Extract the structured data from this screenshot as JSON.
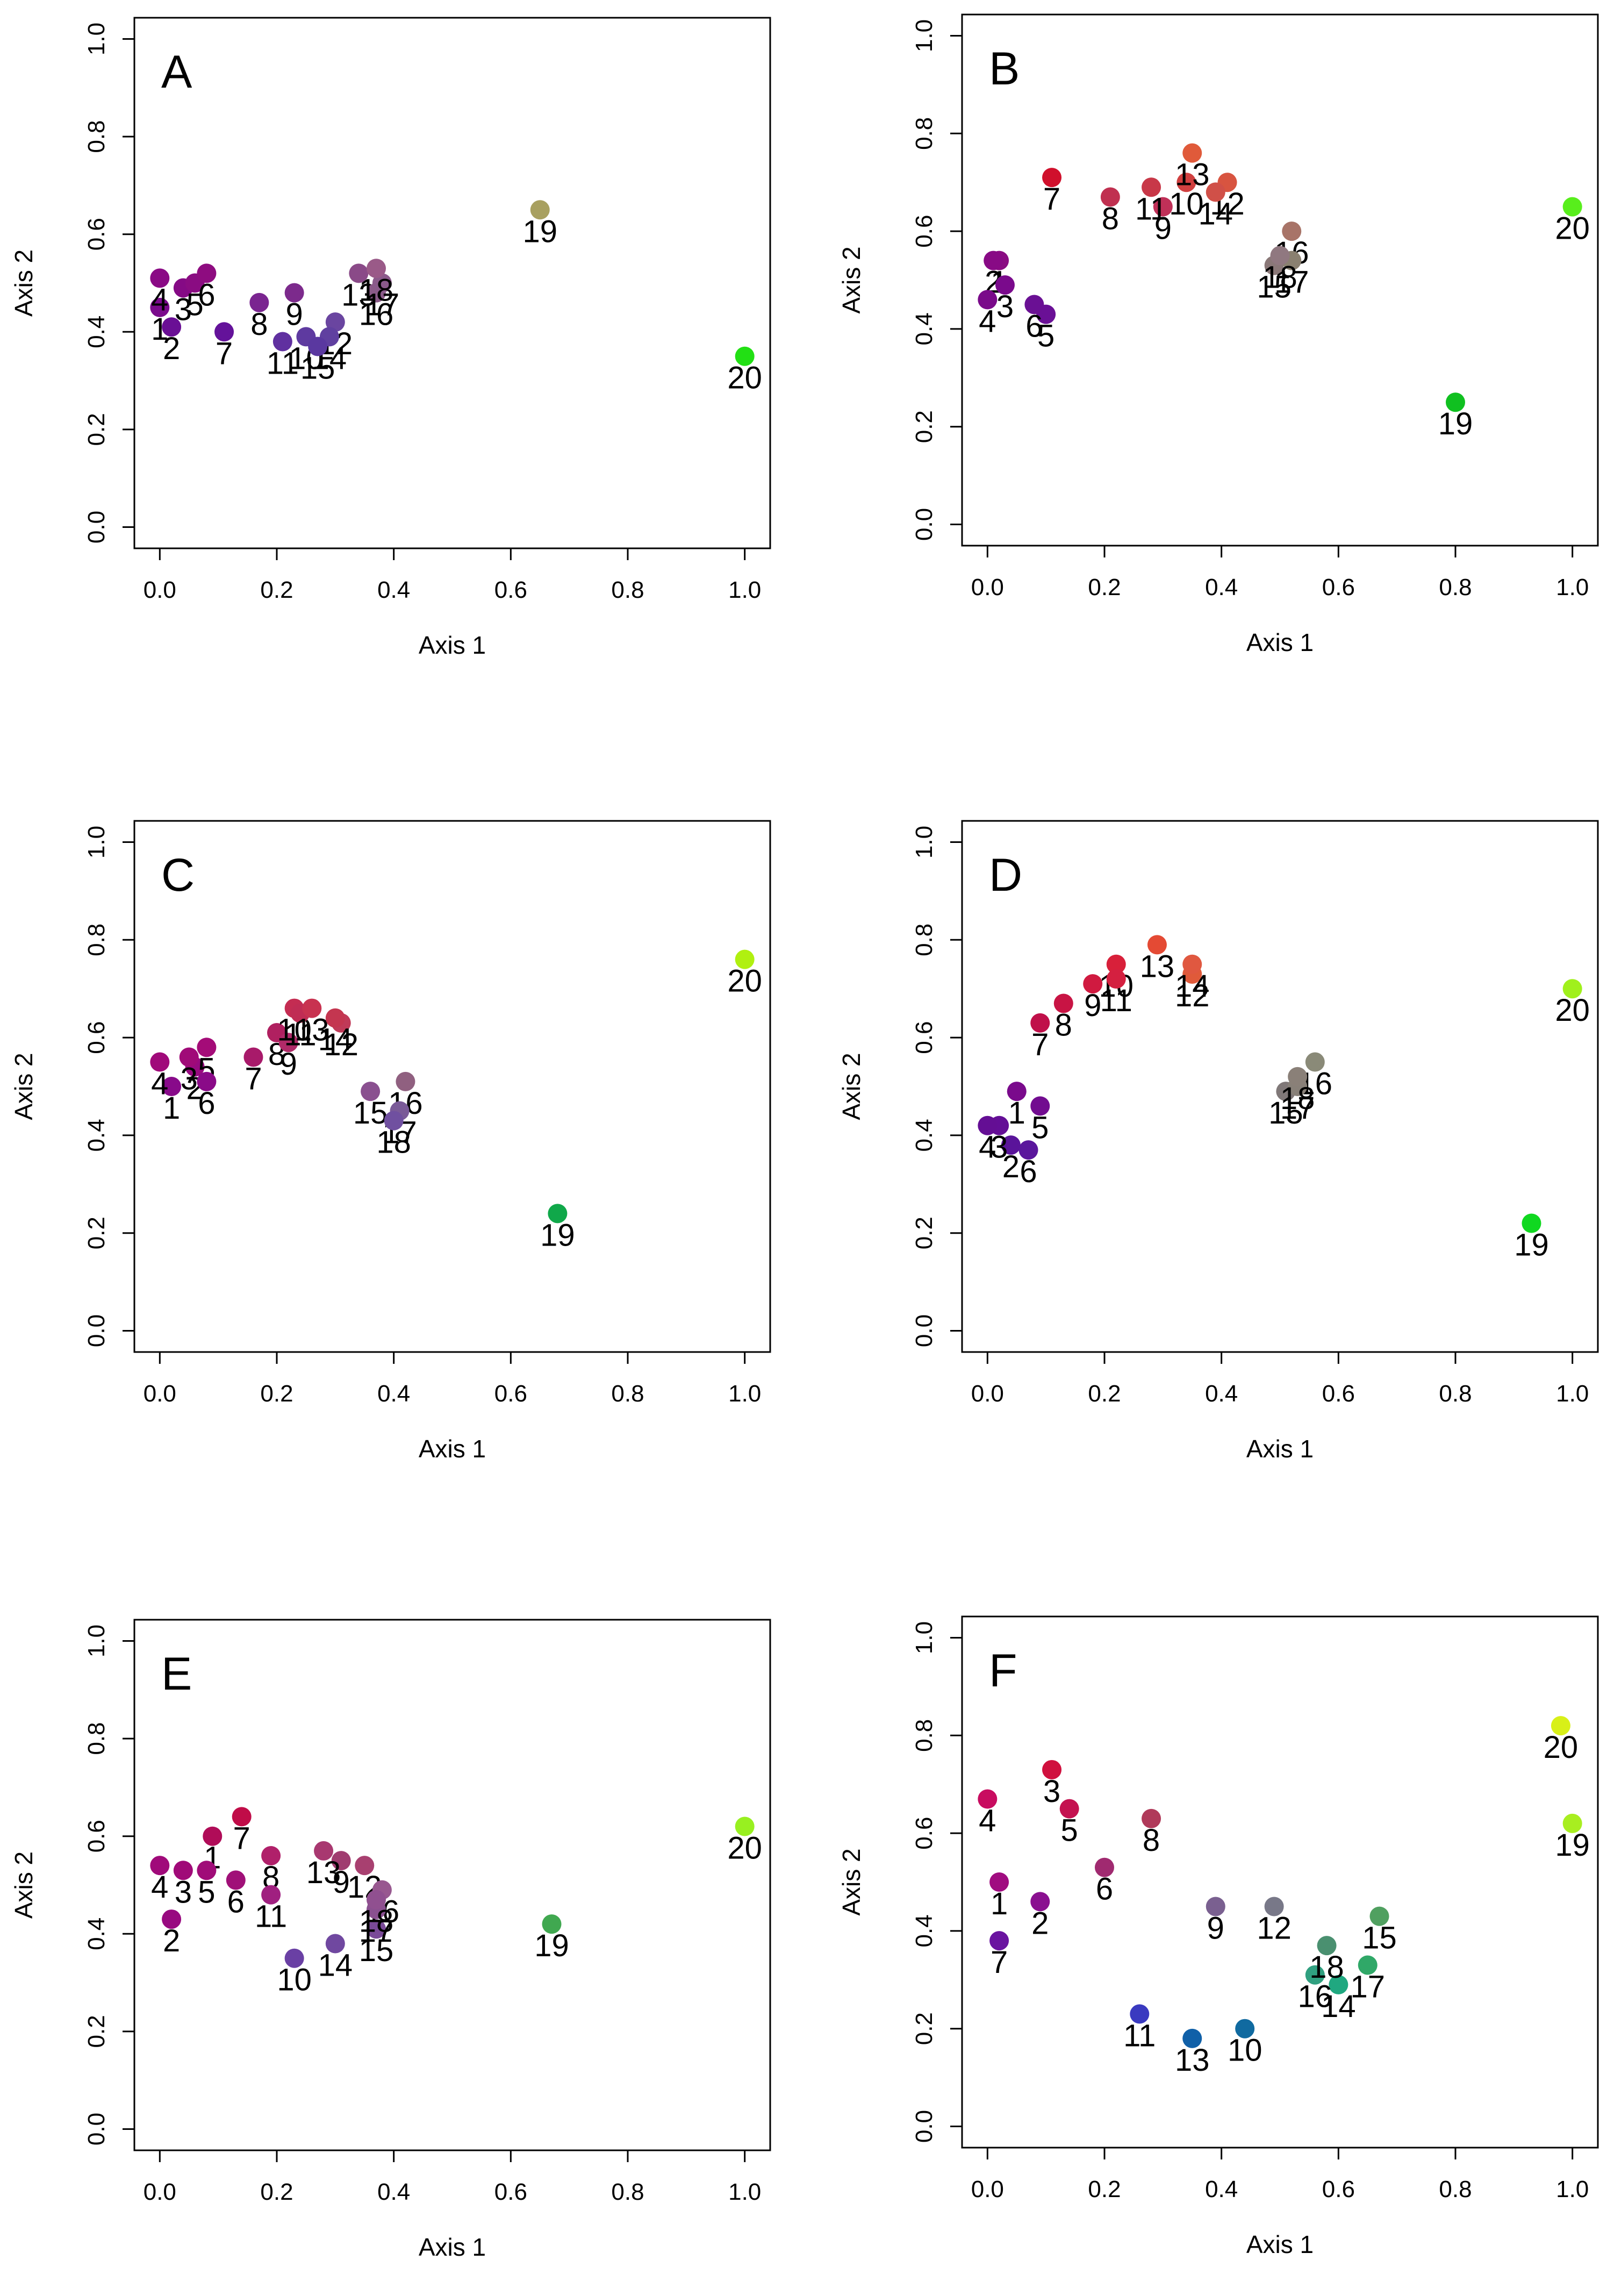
{
  "chart_data": [
    {
      "panel": "A",
      "type": "scatter",
      "xlabel": "Axis 1",
      "ylabel": "Axis 2",
      "xlim": [
        0,
        1
      ],
      "ylim": [
        0,
        1
      ],
      "xticks": [
        "0.0",
        "0.2",
        "0.4",
        "0.6",
        "0.8",
        "1.0"
      ],
      "yticks": [
        "0.0",
        "0.2",
        "0.4",
        "0.6",
        "0.8",
        "1.0"
      ],
      "points": [
        {
          "label": "1",
          "x": 0.0,
          "y": 0.45,
          "color": "#7a0a8c"
        },
        {
          "label": "2",
          "x": 0.02,
          "y": 0.41,
          "color": "#6a0f95"
        },
        {
          "label": "3",
          "x": 0.04,
          "y": 0.49,
          "color": "#850a85"
        },
        {
          "label": "4",
          "x": 0.0,
          "y": 0.51,
          "color": "#8a0a85"
        },
        {
          "label": "5",
          "x": 0.06,
          "y": 0.5,
          "color": "#8a0c82"
        },
        {
          "label": "6",
          "x": 0.08,
          "y": 0.52,
          "color": "#8e0c80"
        },
        {
          "label": "7",
          "x": 0.11,
          "y": 0.4,
          "color": "#64129a"
        },
        {
          "label": "8",
          "x": 0.17,
          "y": 0.46,
          "color": "#7a2590"
        },
        {
          "label": "9",
          "x": 0.23,
          "y": 0.48,
          "color": "#7c2a8c"
        },
        {
          "label": "10",
          "x": 0.25,
          "y": 0.39,
          "color": "#5e3aa0"
        },
        {
          "label": "11",
          "x": 0.21,
          "y": 0.38,
          "color": "#6030a0"
        },
        {
          "label": "12",
          "x": 0.3,
          "y": 0.42,
          "color": "#6a45a0"
        },
        {
          "label": "13",
          "x": 0.34,
          "y": 0.52,
          "color": "#8a4a88"
        },
        {
          "label": "14",
          "x": 0.29,
          "y": 0.39,
          "color": "#6040a0"
        },
        {
          "label": "15",
          "x": 0.27,
          "y": 0.37,
          "color": "#5a38a0"
        },
        {
          "label": "16",
          "x": 0.37,
          "y": 0.48,
          "color": "#8a5a88"
        },
        {
          "label": "17",
          "x": 0.38,
          "y": 0.5,
          "color": "#8a5a8a"
        },
        {
          "label": "18",
          "x": 0.37,
          "y": 0.53,
          "color": "#9a5a88"
        },
        {
          "label": "19",
          "x": 0.65,
          "y": 0.65,
          "color": "#a8a060"
        },
        {
          "label": "20",
          "x": 1.0,
          "y": 0.35,
          "color": "#22e014"
        }
      ]
    },
    {
      "panel": "B",
      "type": "scatter",
      "xlabel": "Axis 1",
      "ylabel": "Axis 2",
      "xlim": [
        0,
        1
      ],
      "ylim": [
        0,
        1
      ],
      "xticks": [
        "0.0",
        "0.2",
        "0.4",
        "0.6",
        "0.8",
        "1.0"
      ],
      "yticks": [
        "0.0",
        "0.2",
        "0.4",
        "0.6",
        "0.8",
        "1.0"
      ],
      "points": [
        {
          "label": "1",
          "x": 0.02,
          "y": 0.54,
          "color": "#8a0c82"
        },
        {
          "label": "2",
          "x": 0.01,
          "y": 0.54,
          "color": "#880a85"
        },
        {
          "label": "3",
          "x": 0.03,
          "y": 0.49,
          "color": "#7a0a8c"
        },
        {
          "label": "4",
          "x": 0.0,
          "y": 0.46,
          "color": "#7a0a8a"
        },
        {
          "label": "5",
          "x": 0.1,
          "y": 0.43,
          "color": "#6a1096"
        },
        {
          "label": "6",
          "x": 0.08,
          "y": 0.45,
          "color": "#6a1094"
        },
        {
          "label": "7",
          "x": 0.11,
          "y": 0.71,
          "color": "#d0102c"
        },
        {
          "label": "8",
          "x": 0.21,
          "y": 0.67,
          "color": "#c03050"
        },
        {
          "label": "9",
          "x": 0.3,
          "y": 0.65,
          "color": "#c03058"
        },
        {
          "label": "10",
          "x": 0.34,
          "y": 0.7,
          "color": "#d04040"
        },
        {
          "label": "11",
          "x": 0.28,
          "y": 0.69,
          "color": "#c83848"
        },
        {
          "label": "12",
          "x": 0.41,
          "y": 0.7,
          "color": "#d85440"
        },
        {
          "label": "13",
          "x": 0.35,
          "y": 0.76,
          "color": "#e05a3a"
        },
        {
          "label": "14",
          "x": 0.39,
          "y": 0.68,
          "color": "#d05048"
        },
        {
          "label": "15",
          "x": 0.49,
          "y": 0.53,
          "color": "#8a7878"
        },
        {
          "label": "16",
          "x": 0.52,
          "y": 0.6,
          "color": "#a87468"
        },
        {
          "label": "17",
          "x": 0.52,
          "y": 0.54,
          "color": "#8a8070"
        },
        {
          "label": "18",
          "x": 0.5,
          "y": 0.55,
          "color": "#907880"
        },
        {
          "label": "19",
          "x": 0.8,
          "y": 0.25,
          "color": "#10c020"
        },
        {
          "label": "20",
          "x": 1.0,
          "y": 0.65,
          "color": "#58ee1c"
        }
      ]
    },
    {
      "panel": "C",
      "type": "scatter",
      "xlabel": "Axis 1",
      "ylabel": "Axis 2",
      "xlim": [
        0,
        1
      ],
      "ylim": [
        0,
        1
      ],
      "xticks": [
        "0.0",
        "0.2",
        "0.4",
        "0.6",
        "0.8",
        "1.0"
      ],
      "yticks": [
        "0.0",
        "0.2",
        "0.4",
        "0.6",
        "0.8",
        "1.0"
      ],
      "points": [
        {
          "label": "1",
          "x": 0.02,
          "y": 0.5,
          "color": "#880a8a"
        },
        {
          "label": "2",
          "x": 0.06,
          "y": 0.54,
          "color": "#980a80"
        },
        {
          "label": "3",
          "x": 0.05,
          "y": 0.56,
          "color": "#a00a78"
        },
        {
          "label": "4",
          "x": 0.0,
          "y": 0.55,
          "color": "#a00a7a"
        },
        {
          "label": "5",
          "x": 0.08,
          "y": 0.58,
          "color": "#a40c78"
        },
        {
          "label": "6",
          "x": 0.08,
          "y": 0.51,
          "color": "#8a0a88"
        },
        {
          "label": "7",
          "x": 0.16,
          "y": 0.56,
          "color": "#a81a6a"
        },
        {
          "label": "8",
          "x": 0.2,
          "y": 0.61,
          "color": "#b02060"
        },
        {
          "label": "9",
          "x": 0.22,
          "y": 0.59,
          "color": "#b02a68"
        },
        {
          "label": "10",
          "x": 0.23,
          "y": 0.66,
          "color": "#c42c52"
        },
        {
          "label": "11",
          "x": 0.24,
          "y": 0.65,
          "color": "#c02c54"
        },
        {
          "label": "12",
          "x": 0.31,
          "y": 0.63,
          "color": "#c03a58"
        },
        {
          "label": "13",
          "x": 0.26,
          "y": 0.66,
          "color": "#c83250"
        },
        {
          "label": "14",
          "x": 0.3,
          "y": 0.64,
          "color": "#c43650"
        },
        {
          "label": "15",
          "x": 0.36,
          "y": 0.49,
          "color": "#8a5090"
        },
        {
          "label": "16",
          "x": 0.42,
          "y": 0.51,
          "color": "#906080"
        },
        {
          "label": "17",
          "x": 0.41,
          "y": 0.45,
          "color": "#7a5a98"
        },
        {
          "label": "18",
          "x": 0.4,
          "y": 0.43,
          "color": "#7050a0"
        },
        {
          "label": "19",
          "x": 0.68,
          "y": 0.24,
          "color": "#10a84a"
        },
        {
          "label": "20",
          "x": 1.0,
          "y": 0.76,
          "color": "#b0f010"
        }
      ]
    },
    {
      "panel": "D",
      "type": "scatter",
      "xlabel": "Axis 1",
      "ylabel": "Axis 2",
      "xlim": [
        0,
        1
      ],
      "ylim": [
        0,
        1
      ],
      "xticks": [
        "0.0",
        "0.2",
        "0.4",
        "0.6",
        "0.8",
        "1.0"
      ],
      "yticks": [
        "0.0",
        "0.2",
        "0.4",
        "0.6",
        "0.8",
        "1.0"
      ],
      "points": [
        {
          "label": "1",
          "x": 0.05,
          "y": 0.49,
          "color": "#7a0a8c"
        },
        {
          "label": "2",
          "x": 0.04,
          "y": 0.38,
          "color": "#5a149a"
        },
        {
          "label": "3",
          "x": 0.02,
          "y": 0.42,
          "color": "#640e96"
        },
        {
          "label": "4",
          "x": 0.0,
          "y": 0.42,
          "color": "#640e94"
        },
        {
          "label": "5",
          "x": 0.09,
          "y": 0.46,
          "color": "#720c90"
        },
        {
          "label": "6",
          "x": 0.07,
          "y": 0.37,
          "color": "#5a169c"
        },
        {
          "label": "7",
          "x": 0.09,
          "y": 0.63,
          "color": "#c0104a"
        },
        {
          "label": "8",
          "x": 0.13,
          "y": 0.67,
          "color": "#c81444"
        },
        {
          "label": "9",
          "x": 0.18,
          "y": 0.71,
          "color": "#d01a40"
        },
        {
          "label": "10",
          "x": 0.22,
          "y": 0.75,
          "color": "#d8203a"
        },
        {
          "label": "11",
          "x": 0.22,
          "y": 0.72,
          "color": "#d42040"
        },
        {
          "label": "12",
          "x": 0.35,
          "y": 0.73,
          "color": "#e05a3a"
        },
        {
          "label": "13",
          "x": 0.29,
          "y": 0.79,
          "color": "#e44a34"
        },
        {
          "label": "14",
          "x": 0.35,
          "y": 0.75,
          "color": "#e05840"
        },
        {
          "label": "15",
          "x": 0.51,
          "y": 0.49,
          "color": "#807878"
        },
        {
          "label": "16",
          "x": 0.56,
          "y": 0.55,
          "color": "#8a8a78"
        },
        {
          "label": "17",
          "x": 0.53,
          "y": 0.5,
          "color": "#888078"
        },
        {
          "label": "18",
          "x": 0.53,
          "y": 0.52,
          "color": "#8a8078"
        },
        {
          "label": "19",
          "x": 0.93,
          "y": 0.22,
          "color": "#10d820"
        },
        {
          "label": "20",
          "x": 1.0,
          "y": 0.7,
          "color": "#a0f01c"
        }
      ]
    },
    {
      "panel": "E",
      "type": "scatter",
      "xlabel": "Axis 1",
      "ylabel": "Axis 2",
      "xlim": [
        0,
        1
      ],
      "ylim": [
        0,
        1
      ],
      "xticks": [
        "0.0",
        "0.2",
        "0.4",
        "0.6",
        "0.8",
        "1.0"
      ],
      "yticks": [
        "0.0",
        "0.2",
        "0.4",
        "0.6",
        "0.8",
        "1.0"
      ],
      "points": [
        {
          "label": "1",
          "x": 0.09,
          "y": 0.6,
          "color": "#b00c58"
        },
        {
          "label": "2",
          "x": 0.02,
          "y": 0.43,
          "color": "#980a80"
        },
        {
          "label": "3",
          "x": 0.04,
          "y": 0.53,
          "color": "#a00a78"
        },
        {
          "label": "4",
          "x": 0.0,
          "y": 0.54,
          "color": "#a00a7a"
        },
        {
          "label": "5",
          "x": 0.08,
          "y": 0.53,
          "color": "#a00c78"
        },
        {
          "label": "6",
          "x": 0.13,
          "y": 0.51,
          "color": "#a01078"
        },
        {
          "label": "7",
          "x": 0.14,
          "y": 0.64,
          "color": "#c00c48"
        },
        {
          "label": "8",
          "x": 0.19,
          "y": 0.56,
          "color": "#b0206a"
        },
        {
          "label": "9",
          "x": 0.31,
          "y": 0.55,
          "color": "#a03c70"
        },
        {
          "label": "10",
          "x": 0.23,
          "y": 0.35,
          "color": "#6a40a4"
        },
        {
          "label": "11",
          "x": 0.19,
          "y": 0.48,
          "color": "#a02080"
        },
        {
          "label": "12",
          "x": 0.35,
          "y": 0.54,
          "color": "#a84070"
        },
        {
          "label": "13",
          "x": 0.28,
          "y": 0.57,
          "color": "#a83870"
        },
        {
          "label": "14",
          "x": 0.3,
          "y": 0.38,
          "color": "#7048a0"
        },
        {
          "label": "15",
          "x": 0.37,
          "y": 0.41,
          "color": "#7a4a98"
        },
        {
          "label": "16",
          "x": 0.38,
          "y": 0.49,
          "color": "#985890"
        },
        {
          "label": "17",
          "x": 0.37,
          "y": 0.45,
          "color": "#8a5090"
        },
        {
          "label": "18",
          "x": 0.37,
          "y": 0.47,
          "color": "#905090"
        },
        {
          "label": "19",
          "x": 0.67,
          "y": 0.42,
          "color": "#40a850"
        },
        {
          "label": "20",
          "x": 1.0,
          "y": 0.62,
          "color": "#98f020"
        }
      ]
    },
    {
      "panel": "F",
      "type": "scatter",
      "xlabel": "Axis 1",
      "ylabel": "Axis 2",
      "xlim": [
        0,
        1
      ],
      "ylim": [
        0,
        1
      ],
      "xticks": [
        "0.0",
        "0.2",
        "0.4",
        "0.6",
        "0.8",
        "1.0"
      ],
      "yticks": [
        "0.0",
        "0.2",
        "0.4",
        "0.6",
        "0.8",
        "1.0"
      ],
      "points": [
        {
          "label": "1",
          "x": 0.02,
          "y": 0.5,
          "color": "#a00c80"
        },
        {
          "label": "2",
          "x": 0.09,
          "y": 0.46,
          "color": "#8a1090"
        },
        {
          "label": "3",
          "x": 0.11,
          "y": 0.73,
          "color": "#d0103e"
        },
        {
          "label": "4",
          "x": 0.0,
          "y": 0.67,
          "color": "#c80c60"
        },
        {
          "label": "5",
          "x": 0.14,
          "y": 0.65,
          "color": "#c41250"
        },
        {
          "label": "6",
          "x": 0.2,
          "y": 0.53,
          "color": "#a02a70"
        },
        {
          "label": "7",
          "x": 0.02,
          "y": 0.38,
          "color": "#6a14a0"
        },
        {
          "label": "8",
          "x": 0.28,
          "y": 0.63,
          "color": "#b03a5a"
        },
        {
          "label": "9",
          "x": 0.39,
          "y": 0.45,
          "color": "#7a6090"
        },
        {
          "label": "10",
          "x": 0.44,
          "y": 0.2,
          "color": "#106aa0"
        },
        {
          "label": "11",
          "x": 0.26,
          "y": 0.23,
          "color": "#3a3ac0"
        },
        {
          "label": "12",
          "x": 0.49,
          "y": 0.45,
          "color": "#787888"
        },
        {
          "label": "13",
          "x": 0.35,
          "y": 0.18,
          "color": "#1060a8"
        },
        {
          "label": "14",
          "x": 0.6,
          "y": 0.29,
          "color": "#20a880"
        },
        {
          "label": "15",
          "x": 0.67,
          "y": 0.43,
          "color": "#50a060"
        },
        {
          "label": "16",
          "x": 0.56,
          "y": 0.31,
          "color": "#30a080"
        },
        {
          "label": "17",
          "x": 0.65,
          "y": 0.33,
          "color": "#30a868"
        },
        {
          "label": "18",
          "x": 0.58,
          "y": 0.37,
          "color": "#4a9070"
        },
        {
          "label": "19",
          "x": 1.0,
          "y": 0.62,
          "color": "#a8ee20"
        },
        {
          "label": "20",
          "x": 0.98,
          "y": 0.82,
          "color": "#d8f018"
        }
      ]
    }
  ]
}
